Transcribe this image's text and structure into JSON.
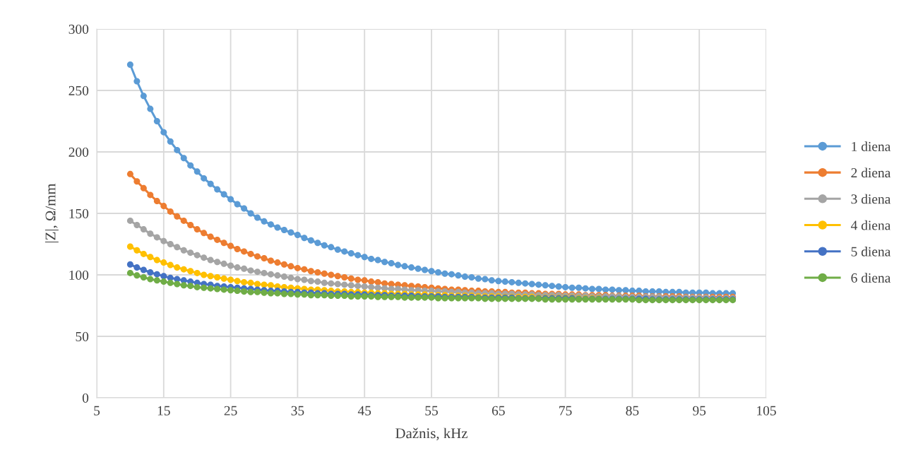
{
  "chart_data": {
    "type": "line",
    "xlabel": "Dažnis, kHz",
    "ylabel": "|Z|, Ω/mm",
    "xlim": [
      5,
      105
    ],
    "xticks": [
      5,
      15,
      25,
      35,
      45,
      55,
      65,
      75,
      85,
      95,
      105
    ],
    "ylim": [
      0,
      300
    ],
    "yticks": [
      0,
      50,
      100,
      150,
      200,
      250,
      300
    ],
    "grid": true,
    "legend": "right",
    "marker": "circle",
    "line_style": "solid",
    "series": [
      {
        "name": "1 diena",
        "color": "#5b9bd5",
        "x": [
          10,
          11,
          12,
          13,
          14,
          15,
          16,
          17,
          18,
          19,
          20,
          21,
          22,
          23,
          24,
          25,
          26,
          27,
          28,
          29,
          30,
          31,
          32,
          33,
          34,
          35,
          36,
          37,
          38,
          39,
          40,
          41,
          42,
          43,
          44,
          45,
          46,
          47,
          48,
          49,
          50,
          51,
          52,
          53,
          54,
          55,
          56,
          57,
          58,
          59,
          60,
          61,
          62,
          63,
          64,
          65,
          66,
          67,
          68,
          69,
          70,
          71,
          72,
          73,
          74,
          75,
          76,
          77,
          78,
          79,
          80,
          81,
          82,
          83,
          84,
          85,
          86,
          87,
          88,
          89,
          90,
          91,
          92,
          93,
          94,
          95,
          96,
          97,
          98,
          99,
          100
        ],
        "values": [
          271,
          257.5,
          245.5,
          235,
          225,
          216,
          208.5,
          201.5,
          195,
          189,
          184,
          178.5,
          174,
          169.5,
          165.5,
          161.5,
          157.5,
          154,
          150,
          146.5,
          143.5,
          141,
          138.5,
          136.5,
          134.5,
          132.5,
          130,
          128,
          126,
          124,
          122.5,
          120.5,
          119,
          117.5,
          116,
          114.5,
          113,
          112,
          110.5,
          109.5,
          108,
          107,
          106,
          105,
          104,
          103,
          102,
          101,
          100.5,
          99.5,
          98.5,
          98,
          97,
          96.5,
          95.5,
          95,
          94.5,
          94,
          93.5,
          93,
          92.5,
          92,
          91.5,
          91,
          90.5,
          90,
          89.5,
          89.5,
          89,
          88.5,
          88.5,
          88,
          88,
          87.5,
          87.5,
          87,
          87,
          86.5,
          86.5,
          86.5,
          86,
          86,
          86,
          85.5,
          85.5,
          85.5,
          85.5,
          85,
          85,
          85,
          85
        ]
      },
      {
        "name": "2 diena",
        "color": "#ed7d31",
        "x": [
          10,
          11,
          12,
          13,
          14,
          15,
          16,
          17,
          18,
          19,
          20,
          21,
          22,
          23,
          24,
          25,
          26,
          27,
          28,
          29,
          30,
          31,
          32,
          33,
          34,
          35,
          36,
          37,
          38,
          39,
          40,
          41,
          42,
          43,
          44,
          45,
          46,
          47,
          48,
          49,
          50,
          51,
          52,
          53,
          54,
          55,
          56,
          57,
          58,
          59,
          60,
          61,
          62,
          63,
          64,
          65,
          66,
          67,
          68,
          69,
          70,
          71,
          72,
          73,
          74,
          75,
          76,
          77,
          78,
          79,
          80,
          81,
          82,
          83,
          84,
          85,
          86,
          87,
          88,
          89,
          90,
          91,
          92,
          93,
          94,
          95,
          96,
          97,
          98,
          99,
          100
        ],
        "values": [
          182,
          176,
          170.5,
          165,
          160,
          156,
          151.5,
          147.5,
          144,
          140.5,
          137,
          134,
          131,
          128.5,
          126,
          123.5,
          121,
          119,
          117,
          115,
          113.5,
          111.5,
          110,
          108.5,
          107,
          105.5,
          104.5,
          103,
          102,
          101,
          100,
          99,
          98,
          97,
          96,
          95.5,
          94.5,
          94,
          93,
          92.5,
          92,
          91.5,
          91,
          90.5,
          90,
          89.5,
          89,
          88.5,
          88,
          88,
          87.5,
          87,
          87,
          86.5,
          86.5,
          86,
          86,
          85.5,
          85.5,
          85.5,
          85,
          85,
          84.5,
          84.5,
          84.5,
          84,
          84,
          84,
          83.5,
          83.5,
          83.5,
          83.5,
          83,
          83,
          83,
          83,
          83,
          82.5,
          82.5,
          82.5,
          82.5,
          82.5,
          82.5,
          82,
          82,
          82,
          82,
          82,
          82,
          82,
          82
        ]
      },
      {
        "name": "3 diena",
        "color": "#a5a5a5",
        "x": [
          10,
          11,
          12,
          13,
          14,
          15,
          16,
          17,
          18,
          19,
          20,
          21,
          22,
          23,
          24,
          25,
          26,
          27,
          28,
          29,
          30,
          31,
          32,
          33,
          34,
          35,
          36,
          37,
          38,
          39,
          40,
          41,
          42,
          43,
          44,
          45,
          46,
          47,
          48,
          49,
          50,
          51,
          52,
          53,
          54,
          55,
          56,
          57,
          58,
          59,
          60,
          61,
          62,
          63,
          64,
          65,
          66,
          67,
          68,
          69,
          70,
          71,
          72,
          73,
          74,
          75,
          76,
          77,
          78,
          79,
          80,
          81,
          82,
          83,
          84,
          85,
          86,
          87,
          88,
          89,
          90,
          91,
          92,
          93,
          94,
          95,
          96,
          97,
          98,
          99,
          100
        ],
        "values": [
          144,
          140.5,
          137,
          133.5,
          130.5,
          127.5,
          125,
          122.5,
          120,
          118,
          116,
          114,
          112,
          110.5,
          109,
          107.5,
          106,
          105,
          103.5,
          102.5,
          101.5,
          100.5,
          99.5,
          98.5,
          97.5,
          96.5,
          96,
          95,
          94.5,
          93.5,
          93,
          92.5,
          92,
          91.5,
          91,
          90.5,
          90,
          89.5,
          89,
          88.5,
          88.5,
          88,
          87.5,
          87.5,
          87,
          87,
          86.5,
          86.5,
          86,
          86,
          85.5,
          85.5,
          85,
          85,
          85,
          84.5,
          84.5,
          84.5,
          84,
          84,
          84,
          83.5,
          83.5,
          83.5,
          83.5,
          83,
          83,
          83,
          83,
          82.5,
          82.5,
          82.5,
          82.5,
          82.5,
          82,
          82,
          82,
          82,
          82,
          82,
          81.5,
          81.5,
          81.5,
          81.5,
          81.5,
          81.5,
          81.5,
          81,
          81,
          81,
          81
        ]
      },
      {
        "name": "4 diena",
        "color": "#ffc000",
        "x": [
          10,
          11,
          12,
          13,
          14,
          15,
          16,
          17,
          18,
          19,
          20,
          21,
          22,
          23,
          24,
          25,
          26,
          27,
          28,
          29,
          30,
          31,
          32,
          33,
          34,
          35,
          36,
          37,
          38,
          39,
          40,
          41,
          42,
          43,
          44,
          45,
          46,
          47,
          48,
          49,
          50,
          51,
          52,
          53,
          54,
          55,
          56,
          57,
          58,
          59,
          60,
          61,
          62,
          63,
          64,
          65,
          66,
          67,
          68,
          69,
          70,
          71,
          72,
          73,
          74,
          75,
          76,
          77,
          78,
          79,
          80
        ],
        "values": [
          123,
          120,
          117,
          114.5,
          112,
          110,
          108,
          106,
          104.5,
          103,
          101.5,
          100,
          99,
          98,
          97,
          96,
          95,
          94,
          93.5,
          92.5,
          92,
          91.5,
          90.5,
          90,
          89.5,
          89,
          88.5,
          88,
          88,
          87.5,
          87,
          86.5,
          86.5,
          86,
          86,
          85.5,
          85.5,
          85,
          85,
          84.5,
          84.5,
          84.5,
          84,
          84,
          84,
          83.5,
          83.5,
          83.5,
          83,
          83,
          83,
          83,
          82.5,
          82.5,
          82.5,
          82.5,
          82,
          82,
          82,
          82,
          82,
          81.5,
          81.5,
          81.5,
          81.5,
          81.5,
          81.5,
          81,
          81,
          81,
          81
        ]
      },
      {
        "name": "5 diena",
        "color": "#4472c4",
        "x": [
          10,
          11,
          12,
          13,
          14,
          15,
          16,
          17,
          18,
          19,
          20,
          21,
          22,
          23,
          24,
          25,
          26,
          27,
          28,
          29,
          30,
          31,
          32,
          33,
          34,
          35,
          36,
          37,
          38,
          39,
          40,
          41,
          42,
          43,
          44,
          45,
          46,
          47,
          48,
          49,
          50,
          51,
          52,
          53,
          54,
          55,
          56,
          57,
          58,
          59,
          60,
          61,
          62,
          63,
          64,
          65,
          66,
          67,
          68,
          69,
          70,
          71,
          72,
          73,
          74,
          75,
          76,
          77,
          78,
          79,
          80,
          81,
          82,
          83,
          84,
          85,
          86,
          87,
          88,
          89,
          90,
          91,
          92,
          93,
          94,
          95,
          96,
          97,
          98,
          99,
          100
        ],
        "values": [
          108.5,
          106,
          104,
          102,
          100.5,
          99,
          97.5,
          96.5,
          95.5,
          94.5,
          93.5,
          92.5,
          92,
          91,
          90.5,
          90,
          89.5,
          89,
          88.5,
          88,
          87.5,
          87,
          87,
          86.5,
          86,
          86,
          85.5,
          85.5,
          85,
          85,
          84.5,
          84.5,
          84.5,
          84,
          84,
          84,
          83.5,
          83.5,
          83.5,
          83,
          83,
          83,
          83,
          82.5,
          82.5,
          82.5,
          82.5,
          82,
          82,
          82,
          82,
          82,
          81.5,
          81.5,
          81.5,
          81.5,
          81.5,
          81.5,
          81,
          81,
          81,
          81,
          81,
          81,
          81,
          81,
          81,
          80.5,
          80.5,
          80.5,
          80.5,
          80.5,
          80.5,
          80.5,
          80.5,
          80.5,
          80.5,
          80.5,
          80,
          80,
          80,
          80,
          80,
          80,
          80,
          80,
          80,
          80,
          80,
          80,
          80
        ]
      },
      {
        "name": "6 diena",
        "color": "#70ad47",
        "x": [
          10,
          11,
          12,
          13,
          14,
          15,
          16,
          17,
          18,
          19,
          20,
          21,
          22,
          23,
          24,
          25,
          26,
          27,
          28,
          29,
          30,
          31,
          32,
          33,
          34,
          35,
          36,
          37,
          38,
          39,
          40,
          41,
          42,
          43,
          44,
          45,
          46,
          47,
          48,
          49,
          50,
          51,
          52,
          53,
          54,
          55,
          56,
          57,
          58,
          59,
          60,
          61,
          62,
          63,
          64,
          65,
          66,
          67,
          68,
          69,
          70,
          71,
          72,
          73,
          74,
          75,
          76,
          77,
          78,
          79,
          80,
          81,
          82,
          83,
          84,
          85,
          86,
          87,
          88,
          89,
          90,
          91,
          92,
          93,
          94,
          95,
          96,
          97,
          98,
          99,
          100
        ],
        "values": [
          101.5,
          99.5,
          98,
          96.5,
          95.5,
          94.5,
          93.5,
          92.5,
          91.5,
          91,
          90,
          89.5,
          89,
          88.5,
          88,
          87.5,
          87,
          86.5,
          86,
          86,
          85.5,
          85,
          85,
          84.5,
          84.5,
          84,
          84,
          83.5,
          83.5,
          83.5,
          83,
          83,
          83,
          82.5,
          82.5,
          82.5,
          82.5,
          82,
          82,
          82,
          82,
          81.5,
          81.5,
          81.5,
          81.5,
          81.5,
          81,
          81,
          81,
          81,
          81,
          81,
          81,
          80.5,
          80.5,
          80.5,
          80.5,
          80.5,
          80.5,
          80.5,
          80.5,
          80.5,
          80,
          80,
          80,
          80,
          80,
          80,
          80,
          80,
          80,
          80,
          80,
          80,
          80,
          80,
          79.5,
          79.5,
          79.5,
          79.5,
          79.5,
          79.5,
          79.5,
          79.5,
          79.5,
          79.5,
          79.5,
          79.5,
          79.5,
          79.5,
          79.5
        ]
      }
    ]
  }
}
